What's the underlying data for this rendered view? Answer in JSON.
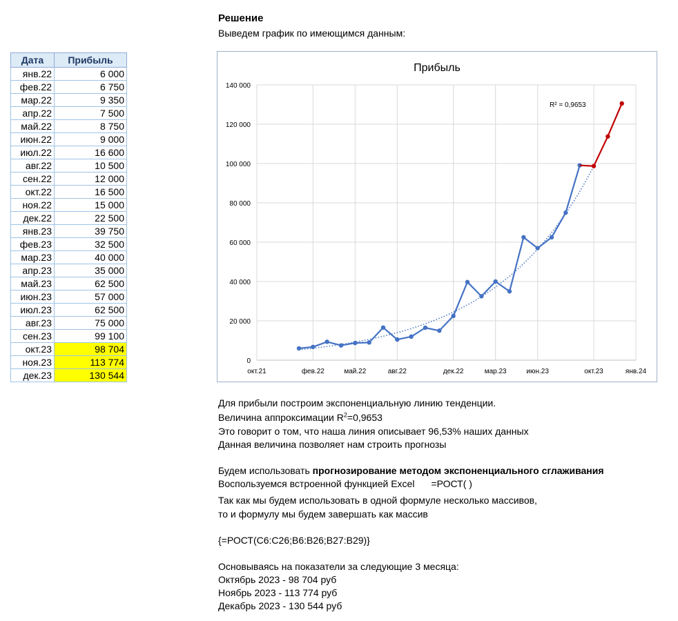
{
  "table": {
    "headers": [
      "Дата",
      "Прибыль"
    ],
    "rows": [
      [
        "янв.22",
        "6 000"
      ],
      [
        "фев.22",
        "6 750"
      ],
      [
        "мар.22",
        "9 350"
      ],
      [
        "апр.22",
        "7 500"
      ],
      [
        "май.22",
        "8 750"
      ],
      [
        "июн.22",
        "9 000"
      ],
      [
        "июл.22",
        "16 600"
      ],
      [
        "авг.22",
        "10 500"
      ],
      [
        "сен.22",
        "12 000"
      ],
      [
        "окт.22",
        "16 500"
      ],
      [
        "ноя.22",
        "15 000"
      ],
      [
        "дек.22",
        "22 500"
      ],
      [
        "янв.23",
        "39 750"
      ],
      [
        "фев.23",
        "32 500"
      ],
      [
        "мар.23",
        "40 000"
      ],
      [
        "апр.23",
        "35 000"
      ],
      [
        "май.23",
        "62 500"
      ],
      [
        "июн.23",
        "57 000"
      ],
      [
        "июл.23",
        "62 500"
      ],
      [
        "авг.23",
        "75 000"
      ],
      [
        "сен.23",
        "99 100"
      ],
      [
        "окт.23",
        "98 704"
      ],
      [
        "ноя.23",
        "113 774"
      ],
      [
        "дек.23",
        "130 544"
      ]
    ],
    "highlight_color": "#ffff00"
  },
  "heading": {
    "title": "Решение",
    "subtitle": "Выведем график по имеющимся данным:"
  },
  "chart_data": {
    "type": "line",
    "title": "Прибыль",
    "xlabel": "",
    "ylabel": "",
    "ylim": [
      0,
      140000
    ],
    "y_ticks": [
      "0",
      "20 000",
      "40 000",
      "60 000",
      "80 000",
      "100 000",
      "120 000",
      "140 000"
    ],
    "x_ticks": [
      "окт.21",
      "фев.22",
      "май.22",
      "авг.22",
      "дек.22",
      "мар.23",
      "июн.23",
      "окт.23",
      "янв.24"
    ],
    "grid": true,
    "series": [
      {
        "color": "#4472c4",
        "x": [
          "янв.22",
          "фев.22",
          "мар.22",
          "апр.22",
          "май.22",
          "июн.22",
          "июл.22",
          "авг.22",
          "сен.22",
          "окт.22",
          "ноя.22",
          "дек.22",
          "янв.23",
          "фев.23",
          "мар.23",
          "апр.23",
          "май.23",
          "июн.23",
          "июл.23",
          "авг.23",
          "сен.23"
        ],
        "values": [
          6000,
          6750,
          9350,
          7500,
          8750,
          9000,
          16600,
          10500,
          12000,
          16500,
          15000,
          22500,
          39750,
          32500,
          40000,
          35000,
          62500,
          57000,
          62500,
          75000,
          99100
        ]
      },
      {
        "color": "#c00000",
        "x": [
          "окт.23",
          "ноя.23",
          "дек.23"
        ],
        "values": [
          98704,
          113774,
          130544
        ]
      }
    ],
    "trendline": {
      "type": "exponential",
      "style": "dotted",
      "color": "#4472c4",
      "r2_label": "R² = 0,9653"
    }
  },
  "notes": {
    "l1": "Для прибыли построим экспоненциальную линию тенденции.",
    "l2_pre": "Величина аппроксимации R",
    "l2_sup": "2",
    "l2_post": "=0,9653",
    "l3": "Это говорит о том, что наша линия описывает 96,53% наших данных",
    "l4": "Данная величина позволяет нам строить прогнозы",
    "l5_pre": "Будем использовать ",
    "l5_bold": "прогнозирование методом экспоненциального сглаживания",
    "l6": "Воспользуемся встроенной функцией Excel",
    "l6_func": "=РОСТ(  )",
    "l7": "Так как мы будем использовать в одной формуле несколько массивов,",
    "l8": "то и формулу мы будем завершать как массив",
    "l9": "{=РОСТ(C6:C26;B6:B26;B27:B29)}",
    "l10": "Основываясь на показатели за следующие 3 месяца:",
    "l11": "Октябрь 2023 - 98 704 руб",
    "l12": "Ноябрь 2023 - 113 774 руб",
    "l13": "Декабрь 2023 - 130 544 руб"
  }
}
